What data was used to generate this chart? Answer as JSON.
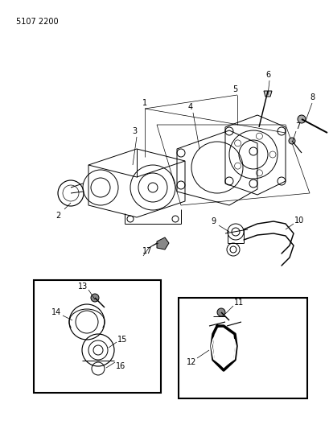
{
  "title": "5107 2200",
  "bg_color": "#ffffff",
  "lc": "#000000",
  "lw": 0.7,
  "fig_w": 4.1,
  "fig_h": 5.33,
  "dpi": 100
}
